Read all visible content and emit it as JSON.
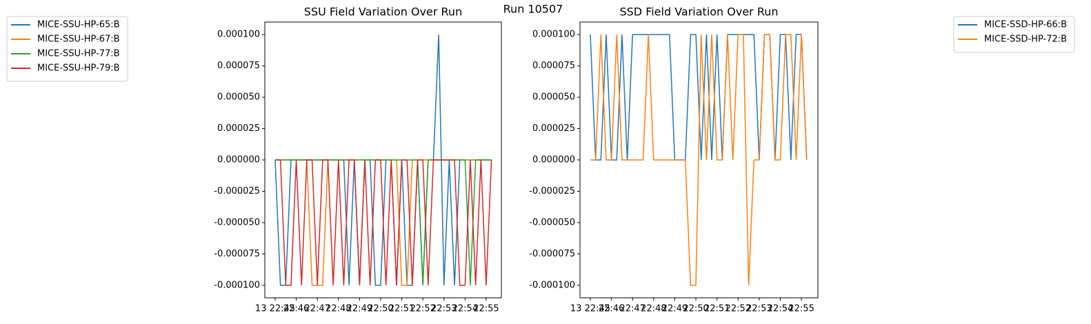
{
  "suptitle": "Run 10507",
  "chart_data": [
    {
      "type": "line",
      "title": "SSU Field Variation Over Run",
      "x": [
        0,
        0.25,
        0.5,
        0.75,
        1,
        1.25,
        1.5,
        1.75,
        2,
        2.25,
        2.5,
        2.75,
        3,
        3.25,
        3.5,
        3.75,
        4,
        4.25,
        4.5,
        4.75,
        5,
        5.25,
        5.5,
        5.75,
        6,
        6.25,
        6.5,
        6.75,
        7,
        7.25,
        7.5,
        7.75,
        8,
        8.25,
        8.5,
        8.75,
        9,
        9.25,
        9.5,
        9.75,
        10,
        10.25
      ],
      "xlim": [
        -0.49,
        10.72
      ],
      "xticks": [
        {
          "value": 0,
          "label": "13 22:45"
        },
        {
          "value": 1,
          "label": "22:46"
        },
        {
          "value": 2,
          "label": "22:47"
        },
        {
          "value": 3,
          "label": "22:48"
        },
        {
          "value": 4,
          "label": "22:49"
        },
        {
          "value": 5,
          "label": "22:50"
        },
        {
          "value": 6,
          "label": "22:51"
        },
        {
          "value": 7,
          "label": "22:52"
        },
        {
          "value": 8,
          "label": "22:53"
        },
        {
          "value": 9,
          "label": "22:54"
        },
        {
          "value": 10,
          "label": "22:55"
        }
      ],
      "ylim": [
        -0.00011,
        0.00011
      ],
      "yticks": [
        {
          "value": -0.0001,
          "label": "-0.000100"
        },
        {
          "value": -7.5e-05,
          "label": "-0.000075"
        },
        {
          "value": -5e-05,
          "label": "-0.000050"
        },
        {
          "value": -2.5e-05,
          "label": "-0.000025"
        },
        {
          "value": 0,
          "label": "0.000000"
        },
        {
          "value": 2.5e-05,
          "label": "0.000025"
        },
        {
          "value": 5e-05,
          "label": "0.000050"
        },
        {
          "value": 7.5e-05,
          "label": "0.000075"
        },
        {
          "value": 0.0001,
          "label": "0.000100"
        }
      ],
      "legend": "outside-left",
      "series": [
        {
          "name": "MICE-SSU-HP-65:B",
          "color": "#1f77b4",
          "values": [
            0,
            -0.0001,
            -0.0001,
            0,
            0,
            0,
            0,
            0,
            0,
            0,
            0,
            0,
            0,
            0,
            -0.0001,
            0,
            -0.0001,
            0,
            0,
            -0.0001,
            -0.0001,
            0,
            0,
            -0.0001,
            0,
            -0.0001,
            -0.0001,
            0,
            -0.0001,
            0,
            0,
            0.0001,
            -0.0001,
            0,
            -0.0001,
            0,
            0,
            0,
            0,
            0,
            0,
            0
          ]
        },
        {
          "name": "MICE-SSU-HP-67:B",
          "color": "#ff7f0e",
          "values": [
            0,
            0,
            0,
            0,
            0,
            0,
            0,
            -0.0001,
            -0.0001,
            -0.0001,
            0,
            0,
            0,
            0,
            0,
            0,
            0,
            0,
            0,
            0,
            0,
            0,
            0,
            0,
            -0.0001,
            -0.0001,
            0,
            0,
            0,
            0,
            0,
            0,
            0,
            0,
            0,
            0,
            0,
            0,
            0,
            0,
            0,
            0
          ]
        },
        {
          "name": "MICE-SSU-HP-77:B",
          "color": "#2ca02c",
          "values": [
            0,
            0,
            0,
            0,
            0,
            0,
            0,
            0,
            0,
            0,
            0,
            0,
            0,
            0,
            0,
            0,
            0,
            0,
            0,
            0,
            0,
            0,
            0,
            0,
            0,
            0,
            0,
            0,
            -0.0001,
            0,
            0,
            0,
            0,
            0,
            0,
            0,
            0,
            -0.0001,
            0,
            0,
            0,
            0
          ]
        },
        {
          "name": "MICE-SSU-HP-79:B",
          "color": "#d62728",
          "values": [
            0,
            0,
            -0.0001,
            -0.0001,
            0,
            -0.0001,
            0,
            0,
            -0.0001,
            0,
            0,
            -0.0001,
            0,
            -0.0001,
            0,
            0,
            -0.0001,
            0,
            -0.0001,
            0,
            0,
            -0.0001,
            0,
            -0.0001,
            0,
            0,
            -0.0001,
            0,
            0,
            -0.0001,
            0,
            0,
            0,
            0,
            0,
            -0.0001,
            -0.0001,
            0,
            -0.0001,
            0,
            -0.0001,
            0
          ]
        }
      ]
    },
    {
      "type": "line",
      "title": "SSD Field Variation Over Run",
      "x": [
        0,
        0.25,
        0.5,
        0.75,
        1,
        1.25,
        1.5,
        1.75,
        2,
        2.25,
        2.5,
        2.75,
        3,
        3.25,
        3.5,
        3.75,
        4,
        4.25,
        4.5,
        4.75,
        5,
        5.25,
        5.5,
        5.75,
        6,
        6.25,
        6.5,
        6.75,
        7,
        7.25,
        7.5,
        7.75,
        8,
        8.25,
        8.5,
        8.75,
        9,
        9.25,
        9.5,
        9.75,
        10,
        10.25
      ],
      "xlim": [
        -0.49,
        10.78
      ],
      "xticks": [
        {
          "value": 0,
          "label": "13 22:45"
        },
        {
          "value": 1,
          "label": "22:46"
        },
        {
          "value": 2,
          "label": "22:47"
        },
        {
          "value": 3,
          "label": "22:48"
        },
        {
          "value": 4,
          "label": "22:49"
        },
        {
          "value": 5,
          "label": "22:50"
        },
        {
          "value": 6,
          "label": "22:51"
        },
        {
          "value": 7,
          "label": "22:52"
        },
        {
          "value": 8,
          "label": "22:53"
        },
        {
          "value": 9,
          "label": "22:54"
        },
        {
          "value": 10,
          "label": "22:55"
        }
      ],
      "ylim": [
        -0.00011,
        0.00011
      ],
      "yticks": [
        {
          "value": -0.0001,
          "label": "-0.000100"
        },
        {
          "value": -7.5e-05,
          "label": "-0.000075"
        },
        {
          "value": -5e-05,
          "label": "-0.000050"
        },
        {
          "value": -2.5e-05,
          "label": "-0.000025"
        },
        {
          "value": 0,
          "label": "0.000000"
        },
        {
          "value": 2.5e-05,
          "label": "0.000025"
        },
        {
          "value": 5e-05,
          "label": "0.000050"
        },
        {
          "value": 7.5e-05,
          "label": "0.000075"
        },
        {
          "value": 0.0001,
          "label": "0.000100"
        }
      ],
      "legend": "outside-right",
      "series": [
        {
          "name": "MICE-SSD-HP-66:B",
          "color": "#1f77b4",
          "values": [
            0.0001,
            0,
            0,
            0.0001,
            0,
            0,
            0.0001,
            0,
            0.0001,
            0.0001,
            0.0001,
            0.0001,
            0.0001,
            0.0001,
            0.0001,
            0.0001,
            0,
            0,
            0,
            0.0001,
            0.0001,
            0,
            0.0001,
            0,
            0.0001,
            0,
            0.0001,
            0.0001,
            0.0001,
            0.0001,
            0.0001,
            0.0001,
            0,
            0.0001,
            0.0001,
            0,
            0.0001,
            0.0001,
            0,
            0.0001,
            0.0001,
            0
          ]
        },
        {
          "name": "MICE-SSD-HP-72:B",
          "color": "#ff7f0e",
          "values": [
            0,
            0,
            0.0001,
            0,
            0,
            0.0001,
            0,
            0,
            0,
            0,
            0,
            0.0001,
            0,
            0,
            0,
            0,
            0,
            0,
            0,
            -0.0001,
            -0.0001,
            0.0001,
            0,
            0.0001,
            0,
            0,
            0.0001,
            0,
            0.0001,
            0.0001,
            -0.0001,
            0,
            0,
            0.0001,
            0.0001,
            0,
            0,
            0.0001,
            0.0001,
            0,
            0.0001,
            0
          ]
        }
      ]
    }
  ]
}
